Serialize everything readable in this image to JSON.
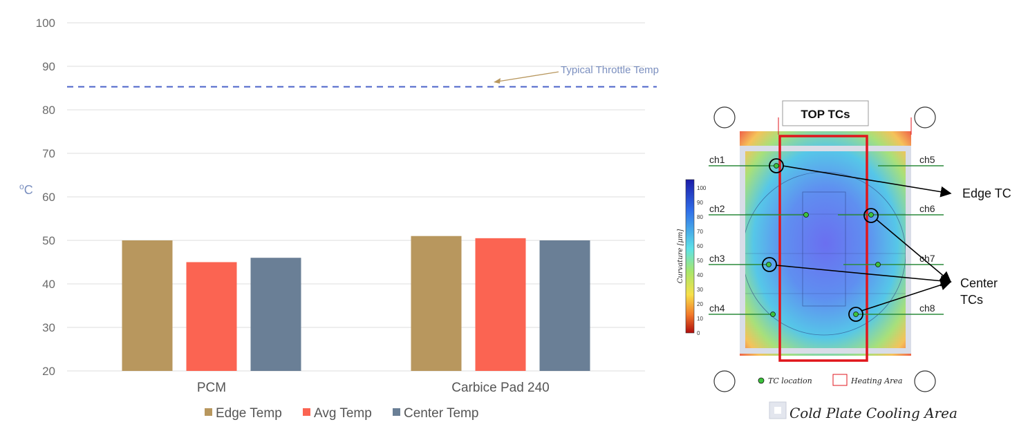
{
  "chart_data": {
    "type": "bar",
    "categories": [
      "PCM",
      "Carbice Pad 240"
    ],
    "series": [
      {
        "name": "Edge Temp",
        "values": [
          50,
          51
        ],
        "color": "#b8975e"
      },
      {
        "name": "Avg Temp",
        "values": [
          45,
          50.5
        ],
        "color": "#fb6452"
      },
      {
        "name": "Center Temp",
        "values": [
          46,
          50
        ],
        "color": "#6a7f96"
      }
    ],
    "ylabel_base": "o",
    "ylabel_unit": "C",
    "ylim": [
      20,
      100
    ],
    "yticks": [
      "20",
      "30",
      "40",
      "50",
      "60",
      "70",
      "80",
      "90",
      "100"
    ],
    "grid": true,
    "legend_position": "bottom",
    "reference_line": {
      "value": 85.3,
      "label": "Typical Throttle Temp",
      "color": "#4a62c9"
    }
  },
  "diagram": {
    "title": "TOP TCs",
    "left_channels": [
      "ch1",
      "ch2",
      "ch3",
      "ch4"
    ],
    "right_channels": [
      "ch5",
      "ch6",
      "ch7",
      "ch8"
    ],
    "colorbar_label": "Curvature [μm]",
    "colorbar_ticks": [
      "100",
      "90",
      "80",
      "70",
      "60",
      "50",
      "40",
      "30",
      "20",
      "10",
      "0"
    ],
    "edge_label": "Edge TC",
    "center_label_line1": "Center",
    "center_label_line2": "TCs",
    "legend_tc": "TC location",
    "legend_heating": "Heating Area",
    "legend_cooling": "Cold Plate Cooling Area"
  }
}
